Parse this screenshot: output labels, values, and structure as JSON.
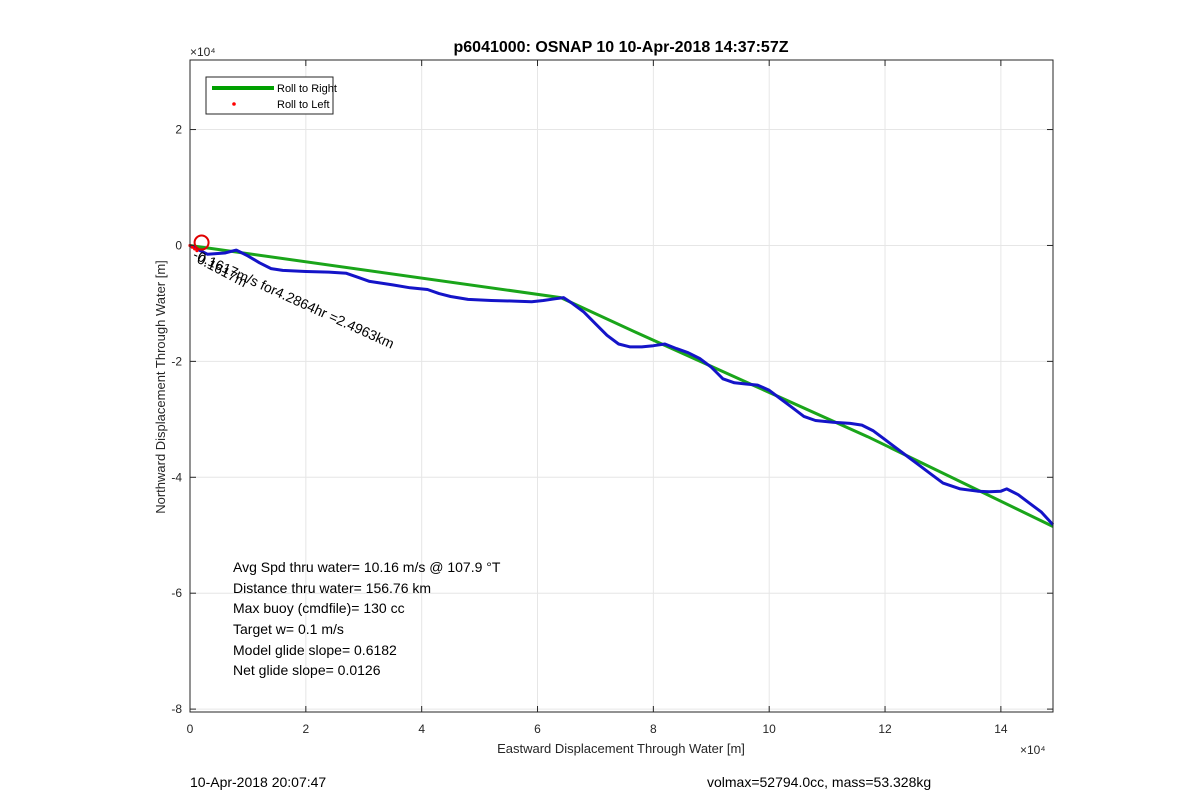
{
  "chart_data": {
    "type": "line",
    "title": "p6041000: OSNAP 10 10-Apr-2018 14:37:57Z",
    "xlabel": "Eastward Displacement Through Water [m]",
    "ylabel": "Northward Displacement Through Water [m]",
    "x_exponent_label": "×10⁴",
    "y_exponent_label": "×10⁴",
    "xlim": [
      0,
      149000
    ],
    "ylim": [
      -80500,
      32000
    ],
    "grid": true,
    "x_ticks": [
      0,
      20000,
      40000,
      60000,
      80000,
      100000,
      120000,
      140000
    ],
    "x_tick_labels": [
      "0",
      "2",
      "4",
      "6",
      "8",
      "10",
      "12",
      "14"
    ],
    "y_ticks": [
      20000,
      0,
      -20000,
      -40000,
      -60000,
      -80000
    ],
    "y_tick_labels": [
      "2",
      "0",
      "-2",
      "-4",
      "-6",
      "-8"
    ],
    "legend": {
      "position": "top-left",
      "entries": [
        {
          "label": "Roll to Right",
          "color": "#00a000",
          "style": "line"
        },
        {
          "label": "Roll to Left",
          "color": "#ff0000",
          "style": "dot"
        }
      ]
    },
    "series": [
      {
        "name": "Roll to Right",
        "color": "#1aa51a",
        "x": [
          0,
          64000,
          77000,
          97000,
          117000,
          149000
        ],
        "y": [
          0,
          -9000,
          -15000,
          -24000,
          -33000,
          -48500
        ]
      },
      {
        "color": "#1414c8",
        "x": [
          0,
          3000,
          6000,
          8000,
          10000,
          12000,
          14000,
          16000,
          20000,
          24000,
          27000,
          29000,
          31000,
          33000,
          35000,
          38000,
          41000,
          43000,
          45000,
          48000,
          52000,
          56000,
          59000,
          61000,
          63000,
          64500,
          66000,
          68000,
          70000,
          72000,
          74000,
          76000,
          78000,
          80000,
          82000,
          84000,
          86000,
          88000,
          90000,
          91000,
          92000,
          94000,
          96000,
          98000,
          100000,
          102000,
          104000,
          106000,
          108000,
          111000,
          114000,
          116000,
          118000,
          120000,
          122000,
          124000,
          126000,
          128000,
          130000,
          133000,
          136000,
          138000,
          140000,
          141000,
          143000,
          145000,
          147000,
          149000
        ],
        "y": [
          0,
          -1500,
          -1300,
          -800,
          -1800,
          -3000,
          -4000,
          -4300,
          -4500,
          -4600,
          -4800,
          -5500,
          -6200,
          -6500,
          -6800,
          -7300,
          -7600,
          -8300,
          -8800,
          -9300,
          -9500,
          -9600,
          -9700,
          -9500,
          -9200,
          -9000,
          -10000,
          -11500,
          -13500,
          -15500,
          -17000,
          -17500,
          -17500,
          -17300,
          -17000,
          -17800,
          -18500,
          -19500,
          -21000,
          -22000,
          -23000,
          -23700,
          -23900,
          -24100,
          -25000,
          -26500,
          -28000,
          -29500,
          -30200,
          -30500,
          -30700,
          -31000,
          -32000,
          -33500,
          -35000,
          -36500,
          -38000,
          -39500,
          -41000,
          -42000,
          -42400,
          -42500,
          -42400,
          -42000,
          -43000,
          -44500,
          -46000,
          -48200
        ]
      },
      {
        "name": "Roll to Left",
        "color": "#ff0000",
        "x": [
          0,
          400,
          800,
          1200
        ],
        "y": [
          0,
          -300,
          -600,
          -900
        ]
      }
    ],
    "marker": {
      "x": 2000,
      "y": 500,
      "color": "#e00000",
      "shape": "circle"
    },
    "annotations": {
      "drift_label": "-0.1617m/s for4.2864hr =2.4963km",
      "overlap_label": "0.1617m"
    },
    "stats": [
      "Avg Spd thru water= 10.16 m/s @ 107.9 °T",
      "Distance thru water= 156.76 km",
      "Max buoy (cmdfile)= 130 cc",
      "Target w= 0.1 m/s",
      "Model glide slope= 0.6182",
      "Net glide slope= 0.0126"
    ]
  },
  "footer": {
    "left": "10-Apr-2018 20:07:47",
    "right": "volmax=52794.0cc, mass=53.328kg"
  }
}
